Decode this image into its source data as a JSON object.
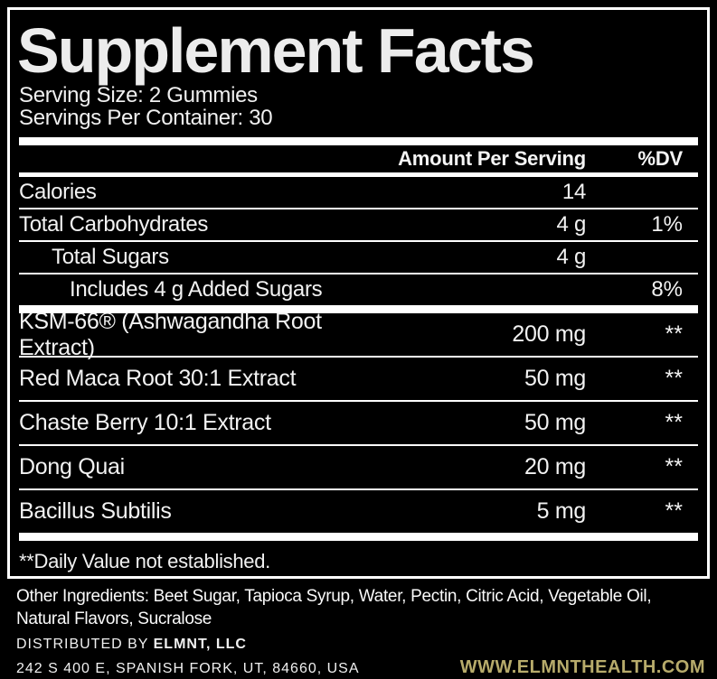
{
  "label": {
    "title": "Supplement Facts",
    "serving_size": "Serving Size: 2 Gummies",
    "servings_per_container": "Servings Per Container: 30",
    "columns": {
      "amount": "Amount Per Serving",
      "dv": "%DV"
    },
    "nutrients": [
      {
        "name": "Calories",
        "amount": "14",
        "dv": "",
        "indent": 0
      },
      {
        "name": "Total Carbohydrates",
        "amount": "4 g",
        "dv": "1%",
        "indent": 0
      },
      {
        "name": "Total Sugars",
        "amount": "4 g",
        "dv": "",
        "indent": 1
      },
      {
        "name": "Includes 4 g Added Sugars",
        "amount": "",
        "dv": "8%",
        "indent": 2
      }
    ],
    "ingredients": [
      {
        "name": "KSM-66® (Ashwagandha Root Extract)",
        "amount": "200 mg",
        "dv": "**"
      },
      {
        "name": "Red Maca Root 30:1 Extract",
        "amount": "50 mg",
        "dv": "**"
      },
      {
        "name": "Chaste Berry 10:1 Extract",
        "amount": "50 mg",
        "dv": "**"
      },
      {
        "name": "Dong Quai",
        "amount": "20 mg",
        "dv": "**"
      },
      {
        "name": "Bacillus Subtilis",
        "amount": "5 mg",
        "dv": "**"
      }
    ],
    "footnote": "**Daily Value not established."
  },
  "footer": {
    "other_ingredients": "Other Ingredients: Beet Sugar, Tapioca Syrup, Water, Pectin, Citric Acid, Vegetable Oil, Natural Flavors, Sucralose",
    "distributed_by_prefix": "DISTRIBUTED BY ",
    "distributed_by_name": "ELMNT, LLC",
    "address": "242 S 400 E, SPANISH FORK, UT, 84660, USA",
    "website": "WWW.ELMNTHEALTH.COM"
  },
  "colors": {
    "background": "#000000",
    "text": "#f2f2f2",
    "rule": "#ffffff",
    "accent_gold": "#b7ab6b"
  }
}
